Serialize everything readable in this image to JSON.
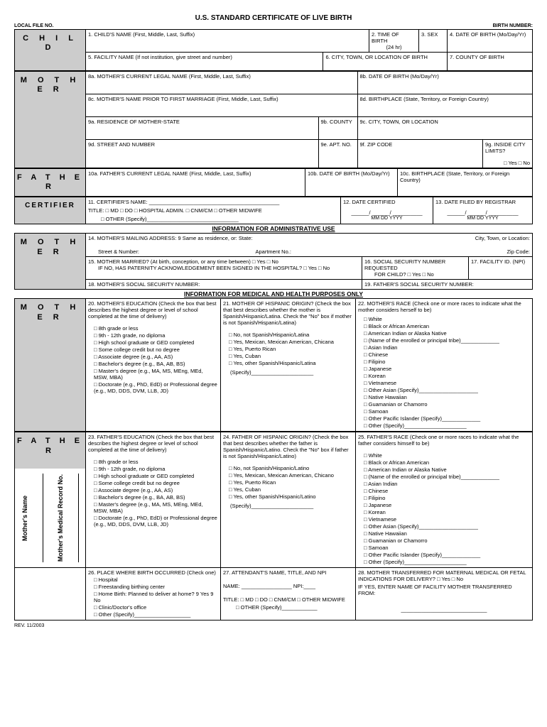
{
  "form": {
    "title": "U.S. STANDARD CERTIFICATE OF LIVE BIRTH",
    "localFileLabel": "LOCAL FILE NO.",
    "birthNumberLabel": "BIRTH NUMBER:",
    "rev": "REV. 11/2003"
  },
  "sections": {
    "child": "C H I L D",
    "mother": "M O T H E R",
    "father": "F A T H E R",
    "certifier": "CERTIFIER"
  },
  "child": {
    "f1": "1. CHILD'S NAME (First, Middle, Last, Suffix)",
    "f2": "2. TIME OF BIRTH",
    "f2sub": "(24 hr)",
    "f3": "3. SEX",
    "f4": "4. DATE OF BIRTH (Mo/Day/Yr)",
    "f5": "5. FACILITY NAME (If not institution, give street and number)",
    "f6": "6. CITY, TOWN, OR LOCATION OF BIRTH",
    "f7": "7. COUNTY OF BIRTH"
  },
  "mother1": {
    "f8a": "8a. MOTHER'S CURRENT LEGAL NAME (First, Middle, Last, Suffix)",
    "f8b": "8b. DATE OF BIRTH (Mo/Day/Yr)",
    "f8c": "8c. MOTHER'S NAME PRIOR TO FIRST MARRIAGE (First, Middle, Last, Suffix)",
    "f8d": "8d. BIRTHPLACE (State, Territory, or Foreign Country)",
    "f9a": "9a. RESIDENCE OF MOTHER-STATE",
    "f9b": "9b. COUNTY",
    "f9c": "9c. CITY, TOWN, OR LOCATION",
    "f9d": "9d. STREET AND NUMBER",
    "f9e": "9e. APT. NO.",
    "f9f": "9f. ZIP CODE",
    "f9g": "9g. INSIDE CITY LIMITS?",
    "f9gyn": "□ Yes  □ No"
  },
  "father1": {
    "f10a": "10a. FATHER'S CURRENT LEGAL NAME (First, Middle, Last, Suffix)",
    "f10b": "10b. DATE OF BIRTH (Mo/Day/Yr)",
    "f10c": "10c. BIRTHPLACE (State, Territory, or Foreign Country)"
  },
  "certifier": {
    "f11": "11. CERTIFIER'S NAME:   ____________________________________________",
    "f11title": "TITLE: □ MD   □ DO   □ HOSPITAL ADMIN.  □ CNM/CM   □ OTHER MIDWIFE",
    "f11other": "□  OTHER (Specify)_______________________________",
    "f12": "12. DATE CERTIFIED",
    "f12line": "______/ ______/ __________",
    "f12parts": "MM       DD         YYYY",
    "f13": "13. DATE FILED BY REGISTRAR",
    "f13line": "______/ ______/ __________",
    "f13parts": "MM       DD         YYYY"
  },
  "adminHeader": "INFORMATION FOR ADMINISTRATIVE USE",
  "admin": {
    "f14": "14. MOTHER'S MAILING ADDRESS:    9 Same as residence, or:       State:",
    "f14city": "City, Town, or Location:",
    "f14street": "Street & Number:",
    "f14apt": "Apartment No.:",
    "f14zip": "Zip Code:",
    "f15a": "15. MOTHER MARRIED? (At birth, conception, or any time between)                             □ Yes    □ No",
    "f15b": "IF NO, HAS PATERNITY ACKNOWLEDGEMENT BEEN SIGNED IN THE HOSPITAL?  □ Yes    □ No",
    "f16": "16. SOCIAL SECURITY NUMBER REQUESTED",
    "f16sub": "FOR CHILD?    □ Yes   □ No",
    "f17": "17. FACILITY ID. (NPI)",
    "f18": "18. MOTHER'S SOCIAL SECURITY NUMBER:",
    "f19": "19. FATHER'S SOCIAL SECURITY NUMBER:"
  },
  "medicalHeader": "INFORMATION FOR MEDICAL AND HEALTH PURPOSES ONLY",
  "education": {
    "motherTitle": "20. MOTHER'S EDUCATION (Check the box that best describes the highest degree or level of school completed at the time of delivery)",
    "fatherTitle": "23. FATHER'S EDUCATION (Check the box that best describes the highest degree or level of school completed at the time of delivery)",
    "options": [
      "8th grade or less",
      "9th - 12th grade, no diploma",
      "High school graduate or GED completed",
      "Some college credit but no degree",
      "Associate degree (e.g., AA, AS)",
      "Bachelor's degree (e.g., BA, AB, BS)",
      "Master's degree (e.g., MA, MS, MEng, MEd, MSW, MBA)",
      "Doctorate (e.g., PhD, EdD) or Professional degree (e.g., MD, DDS, DVM, LLB, JD)"
    ]
  },
  "hispanic": {
    "motherTitle": "21. MOTHER OF HISPANIC ORIGIN?  (Check the box that best describes whether the mother is Spanish/Hispanic/Latina. Check the \"No\" box if mother is not Spanish/Hispanic/Latina)",
    "fatherTitle": "24. FATHER OF HISPANIC ORIGIN?  (Check the box that best describes whether the father is Spanish/Hispanic/Latino. Check the \"No\" box if father is not Spanish/Hispanic/Latino)",
    "motherOptions": [
      "No, not Spanish/Hispanic/Latina",
      "Yes, Mexican, Mexican American, Chicana",
      "Yes, Puerto Rican",
      "Yes, Cuban",
      "Yes, other Spanish/Hispanic/Latina"
    ],
    "fatherOptions": [
      "No, not Spanish/Hispanic/Latino",
      "Yes, Mexican, Mexican American, Chicano",
      "Yes, Puerto Rican",
      "Yes, Cuban",
      "Yes, other Spanish/Hispanic/Latino"
    ],
    "specify": "(Specify)_____________________"
  },
  "race": {
    "motherTitle": "22. MOTHER'S RACE (Check one or more races to indicate what the mother considers herself to be)",
    "fatherTitle": "25. FATHER'S RACE (Check one or more races to indicate what the father considers himself to be)",
    "options": [
      "White",
      "Black or African American",
      "American Indian or Alaska Native",
      "(Name of the enrolled or principal tribe)_____________",
      "Asian Indian",
      "Chinese",
      "Filipino",
      "Japanese",
      "Korean",
      "Vietnamese",
      "Other Asian (Specify)____________________",
      "Native Hawaiian",
      "Guamanian or Chamorro",
      "Samoan",
      "Other Pacific Islander (Specify)_____________",
      "Other (Specify)_____________________"
    ]
  },
  "birth": {
    "f26": "26. PLACE WHERE BIRTH OCCURRED (Check one)",
    "f26opts": [
      "Hospital",
      "Freestanding birthing center",
      "Home Birth: Planned to deliver at home? 9 Yes  9 No",
      "Clinic/Doctor's office",
      "Other (Specify)___________________"
    ],
    "f27": "27. ATTENDANT'S NAME, TITLE, AND NPI",
    "f27name": "NAME: _________________    NPI:____",
    "f27title": "TITLE:  □ MD  □ DO  □ CNM/CM  □ OTHER MIDWIFE",
    "f27other": "□  OTHER (Specify)____________",
    "f28": "28. MOTHER TRANSFERRED FOR MATERNAL MEDICAL OR FETAL INDICATIONS FOR DELIVERY?  □ Yes   □ No",
    "f28sub": "IF YES, ENTER NAME OF FACILITY MOTHER TRANSFERRED FROM:",
    "f28line": "_____________________________"
  },
  "sidelabels": {
    "name": "Mother's Name",
    "record": "Mother's Medical Record No."
  }
}
